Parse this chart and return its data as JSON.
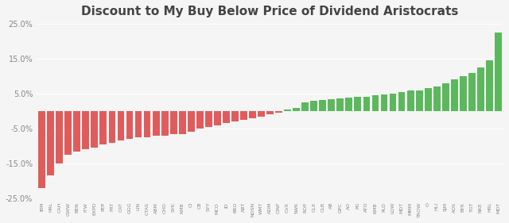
{
  "title": "Discount to My Buy Below Price of Dividend Aristocrats",
  "tickers": [
    "IBM",
    "HRL",
    "CAH",
    "GWW",
    "BEN",
    "ITW",
    "EXPD",
    "PEP",
    "FRT",
    "CAT",
    "GGG",
    "LIN",
    "CTAS",
    "ABM",
    "CHD",
    "SYK",
    "KMB",
    "CI",
    "CB",
    "SYY",
    "MCO",
    "ID",
    "BRO",
    "ABT",
    "NDSN",
    "WMT",
    "ADM",
    "CINF",
    "CVX",
    "SWK",
    "ROP",
    "CLX",
    "CLB",
    "AB",
    "GPC",
    "AO",
    "PG",
    "ATO",
    "KMB",
    "PLD",
    "LOW",
    "MDT",
    "MMM",
    "TROW",
    "O",
    "HLI",
    "SJM",
    "AOS",
    "BYR",
    "TGT",
    "NKE",
    "HRL",
    "MDT"
  ],
  "values": [
    -22.0,
    -18.5,
    -15.0,
    -12.5,
    -11.5,
    -11.0,
    -10.5,
    -9.5,
    -9.0,
    -8.5,
    -8.0,
    -7.5,
    -7.5,
    -7.0,
    -7.0,
    -6.5,
    -6.5,
    -6.0,
    -5.0,
    -4.5,
    -4.0,
    -3.5,
    -3.0,
    -2.5,
    -2.0,
    -1.5,
    -1.0,
    -0.5,
    0.5,
    1.0,
    2.5,
    3.0,
    3.2,
    3.5,
    3.7,
    3.8,
    4.0,
    4.2,
    4.5,
    4.8,
    5.0,
    5.5,
    5.8,
    6.0,
    6.5,
    7.0,
    8.0,
    9.0,
    10.0,
    11.0,
    12.5,
    14.5,
    22.5
  ],
  "red_color": "#e05c5c",
  "green_color": "#5cb85c",
  "background_color": "#f5f5f5",
  "ylim": [
    -25,
    25
  ],
  "ytick_vals": [
    -25,
    -15,
    -5,
    5,
    15,
    25
  ],
  "ytick_labels": [
    "-25.0%",
    "-15.0%",
    "-5.0%",
    "5.0%",
    "15.0%",
    "25.0%"
  ]
}
